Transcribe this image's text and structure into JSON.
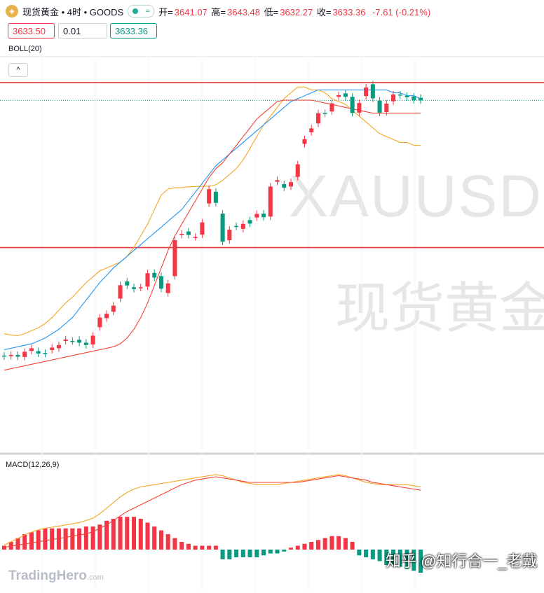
{
  "header": {
    "icon": "gold-coin-icon",
    "symbol_title": "现货黄金 • 4时 • GOODS",
    "live_badge": "≈",
    "open_label": "开=",
    "open": "3641.07",
    "high_label": "高=",
    "high": "3643.48",
    "low_label": "低=",
    "low": "3632.27",
    "close_label": "收=",
    "close": "3633.36",
    "change": "-7.61 (-0.21%)"
  },
  "trade": {
    "sell_price": "3633.50",
    "quantity": "0.01",
    "buy_price": "3633.36"
  },
  "indicators": {
    "boll_label": "BOLL(20)",
    "macd_label": "MACD(12,26,9)",
    "collapse_glyph": "^"
  },
  "watermark": {
    "symbol": "XAUUSD",
    "name": "现货黄金"
  },
  "branding": {
    "logo_text": "TradingHero",
    "logo_suffix": ".com",
    "credit": "知乎 @知行合一_老戴"
  },
  "colors": {
    "up": "#f23645",
    "down": "#089981",
    "boll_upper": "#f5a623",
    "boll_mid": "#2196f3",
    "boll_lower": "#f44336",
    "hline": "#e53935"
  },
  "chart_data": {
    "type": "candlestick",
    "candles": [
      [
        1,
        0.7
      ],
      [
        0.8,
        1.2
      ],
      [
        1.2,
        0.6
      ],
      [
        0.5,
        2.3
      ],
      [
        2.6,
        3.5
      ],
      [
        2.5,
        1.7
      ],
      [
        1.9,
        1.6
      ],
      [
        2.9,
        3.7
      ],
      [
        3.5,
        4.6
      ],
      [
        6,
        6.5
      ],
      [
        6,
        5.9
      ],
      [
        6.4,
        5.4
      ],
      [
        5.4,
        4.6
      ],
      [
        4.8,
        7.8
      ],
      [
        10.7,
        14
      ],
      [
        13.8,
        15.3
      ],
      [
        16,
        18.1
      ],
      [
        20.5,
        25.1
      ],
      [
        26.4,
        25
      ],
      [
        24.4,
        23.8
      ],
      [
        24.2,
        24.4
      ],
      [
        24.6,
        29.2
      ],
      [
        29.3,
        27.7
      ],
      [
        28.2,
        23.9
      ],
      [
        22.4,
        25.7
      ],
      [
        28.2,
        40.5
      ],
      [
        42.3,
        42.7
      ],
      [
        43.5,
        42.3
      ],
      [
        41.6,
        41.6
      ],
      [
        42.4,
        46.6
      ],
      [
        53.1,
        58
      ],
      [
        57.1,
        53.3
      ],
      [
        49.6,
        40
      ],
      [
        40.5,
        44.1
      ],
      [
        45.4,
        45.2
      ],
      [
        44.4,
        46.1
      ],
      [
        47.4,
        46.2
      ],
      [
        48.3,
        49.5
      ],
      [
        49.6,
        48.4
      ],
      [
        48.6,
        58.9
      ],
      [
        60.5,
        61.1
      ],
      [
        59.7,
        58.5
      ],
      [
        58.9,
        60.4
      ],
      [
        62.2,
        66.5
      ],
      [
        73.5,
        75.1
      ],
      [
        77.5,
        78.8
      ],
      [
        80.5,
        84
      ],
      [
        84.1,
        83.9
      ],
      [
        84.6,
        87.4
      ],
      [
        89.6,
        90.2
      ],
      [
        90.8,
        89.6
      ],
      [
        89.6,
        84.1
      ],
      [
        84.2,
        87.5
      ],
      [
        89.9,
        92.8
      ],
      [
        93.9,
        89.1
      ],
      [
        88.3,
        84.2
      ],
      [
        84.4,
        87.3
      ],
      [
        88.1,
        90.4
      ],
      [
        90.4,
        90.1
      ],
      [
        90,
        89.5
      ],
      [
        89.7,
        88.5
      ],
      [
        89.3,
        88.4
      ]
    ],
    "boll_upper": [
      8.5,
      8,
      7.8,
      8.5,
      9.5,
      10.5,
      12,
      14,
      16.5,
      19,
      21,
      23.5,
      26,
      28,
      30,
      31,
      32,
      33,
      35,
      38,
      42,
      46,
      51,
      56,
      58,
      58.5,
      58.5,
      58.8,
      58.9,
      59,
      59,
      59.5,
      61,
      63,
      65,
      68,
      72,
      76,
      80,
      83,
      86,
      89,
      91,
      93,
      93,
      92,
      92,
      91,
      89,
      88,
      87,
      85,
      83,
      81,
      79,
      77,
      76,
      75,
      74,
      74,
      73,
      73
    ],
    "boll_middle": [
      3,
      3.5,
      4,
      4.5,
      5,
      6,
      7,
      8.5,
      10,
      12,
      14,
      17,
      20,
      23,
      26,
      28.5,
      31,
      33,
      35,
      37,
      39,
      41,
      43,
      45,
      47,
      49,
      51,
      54,
      57,
      60,
      63,
      66,
      68,
      70,
      72,
      74,
      76,
      78,
      80,
      82,
      84,
      86,
      88,
      89,
      90,
      91,
      92,
      92,
      92,
      92,
      92,
      92,
      92,
      92,
      92,
      92,
      92,
      91,
      91,
      90,
      90,
      89
    ],
    "boll_lower": [
      -4,
      -3.5,
      -3,
      -2.5,
      -2,
      -1.5,
      -1,
      -0.5,
      0,
      0.5,
      1,
      1.5,
      2,
      2.5,
      3,
      3.5,
      4,
      5,
      7,
      10,
      14,
      19,
      25,
      31,
      37,
      42,
      46,
      50,
      54,
      58,
      62,
      65,
      67,
      70,
      73,
      76,
      79,
      82,
      84,
      86,
      88,
      88.5,
      88.5,
      88.5,
      88.5,
      88.5,
      88,
      87.5,
      87,
      86.5,
      86,
      85.5,
      85,
      84.5,
      84,
      84,
      84,
      84,
      84,
      84,
      84,
      84
    ],
    "macd": [
      0.2,
      0.35,
      0.5,
      0.65,
      0.78,
      0.88,
      0.95,
      1.0,
      1.05,
      1.1,
      1.15,
      1.2,
      1.3,
      1.4,
      1.6,
      1.85,
      2.1,
      2.35,
      2.55,
      2.7,
      2.8,
      2.85,
      2.9,
      2.95,
      3.0,
      3.05,
      3.1,
      3.15,
      3.2,
      3.25,
      3.3,
      3.35,
      3.3,
      3.2,
      3.1,
      3.0,
      2.95,
      2.9,
      2.9,
      2.9,
      2.9,
      2.95,
      3.0,
      3.05,
      3.1,
      3.15,
      3.2,
      3.25,
      3.3,
      3.35,
      3.3,
      3.2,
      3.1,
      3.0,
      2.95,
      2.9,
      2.9,
      2.9,
      2.9,
      2.9,
      2.85,
      2.8
    ],
    "signal": [
      0.1,
      0.15,
      0.2,
      0.25,
      0.3,
      0.35,
      0.4,
      0.45,
      0.5,
      0.55,
      0.6,
      0.65,
      0.7,
      0.8,
      0.95,
      1.1,
      1.3,
      1.5,
      1.7,
      1.85,
      2.0,
      2.15,
      2.3,
      2.45,
      2.6,
      2.75,
      2.9,
      3.0,
      3.1,
      3.15,
      3.2,
      3.25,
      3.2,
      3.15,
      3.1,
      3.05,
      3.0,
      3.0,
      3.0,
      3.0,
      3.0,
      3.0,
      3.0,
      3.0,
      3.05,
      3.1,
      3.15,
      3.2,
      3.25,
      3.3,
      3.25,
      3.2,
      3.15,
      3.1,
      3.0,
      2.95,
      2.9,
      2.85,
      2.8,
      2.75,
      2.7,
      2.65
    ],
    "hist": [
      0.1,
      0.2,
      0.3,
      0.4,
      0.45,
      0.5,
      0.55,
      0.55,
      0.55,
      0.55,
      0.55,
      0.55,
      0.6,
      0.6,
      0.65,
      0.75,
      0.8,
      0.85,
      0.85,
      0.85,
      0.8,
      0.7,
      0.6,
      0.5,
      0.4,
      0.3,
      0.2,
      0.15,
      0.1,
      0.1,
      0.1,
      0.1,
      -0.25,
      -0.25,
      -0.2,
      -0.2,
      -0.2,
      -0.2,
      -0.15,
      -0.1,
      -0.1,
      -0.05,
      0.05,
      0.1,
      0.15,
      0.2,
      0.25,
      0.3,
      0.35,
      0.35,
      0.3,
      0.2,
      -0.15,
      -0.2,
      -0.25,
      -0.3,
      -0.4,
      -0.4,
      -0.45,
      -0.5,
      -0.55,
      -0.6
    ],
    "hlines": [
      94.5,
      38.0
    ]
  }
}
